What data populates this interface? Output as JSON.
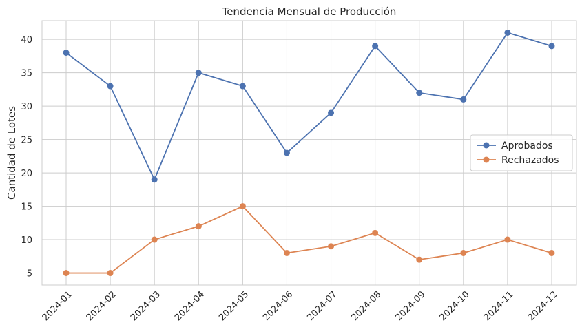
{
  "chart_data": {
    "type": "line",
    "title": "Tendencia Mensual de Producción",
    "xlabel": "",
    "ylabel": "Cantidad de Lotes",
    "categories": [
      "2024-01",
      "2024-02",
      "2024-03",
      "2024-04",
      "2024-05",
      "2024-06",
      "2024-07",
      "2024-08",
      "2024-09",
      "2024-10",
      "2024-11",
      "2024-12"
    ],
    "series": [
      {
        "name": "Aprobados",
        "color": "#4c72b0",
        "values": [
          38,
          33,
          19,
          35,
          33,
          23,
          29,
          39,
          32,
          31,
          41,
          39
        ]
      },
      {
        "name": "Rechazados",
        "color": "#dd8452",
        "values": [
          5,
          5,
          10,
          12,
          15,
          8,
          9,
          11,
          7,
          8,
          10,
          8
        ]
      }
    ],
    "ylim": [
      3.2,
      42.8
    ],
    "yticks": [
      5,
      10,
      15,
      20,
      25,
      30,
      35,
      40
    ],
    "grid": true,
    "legend_position": "center-right"
  }
}
